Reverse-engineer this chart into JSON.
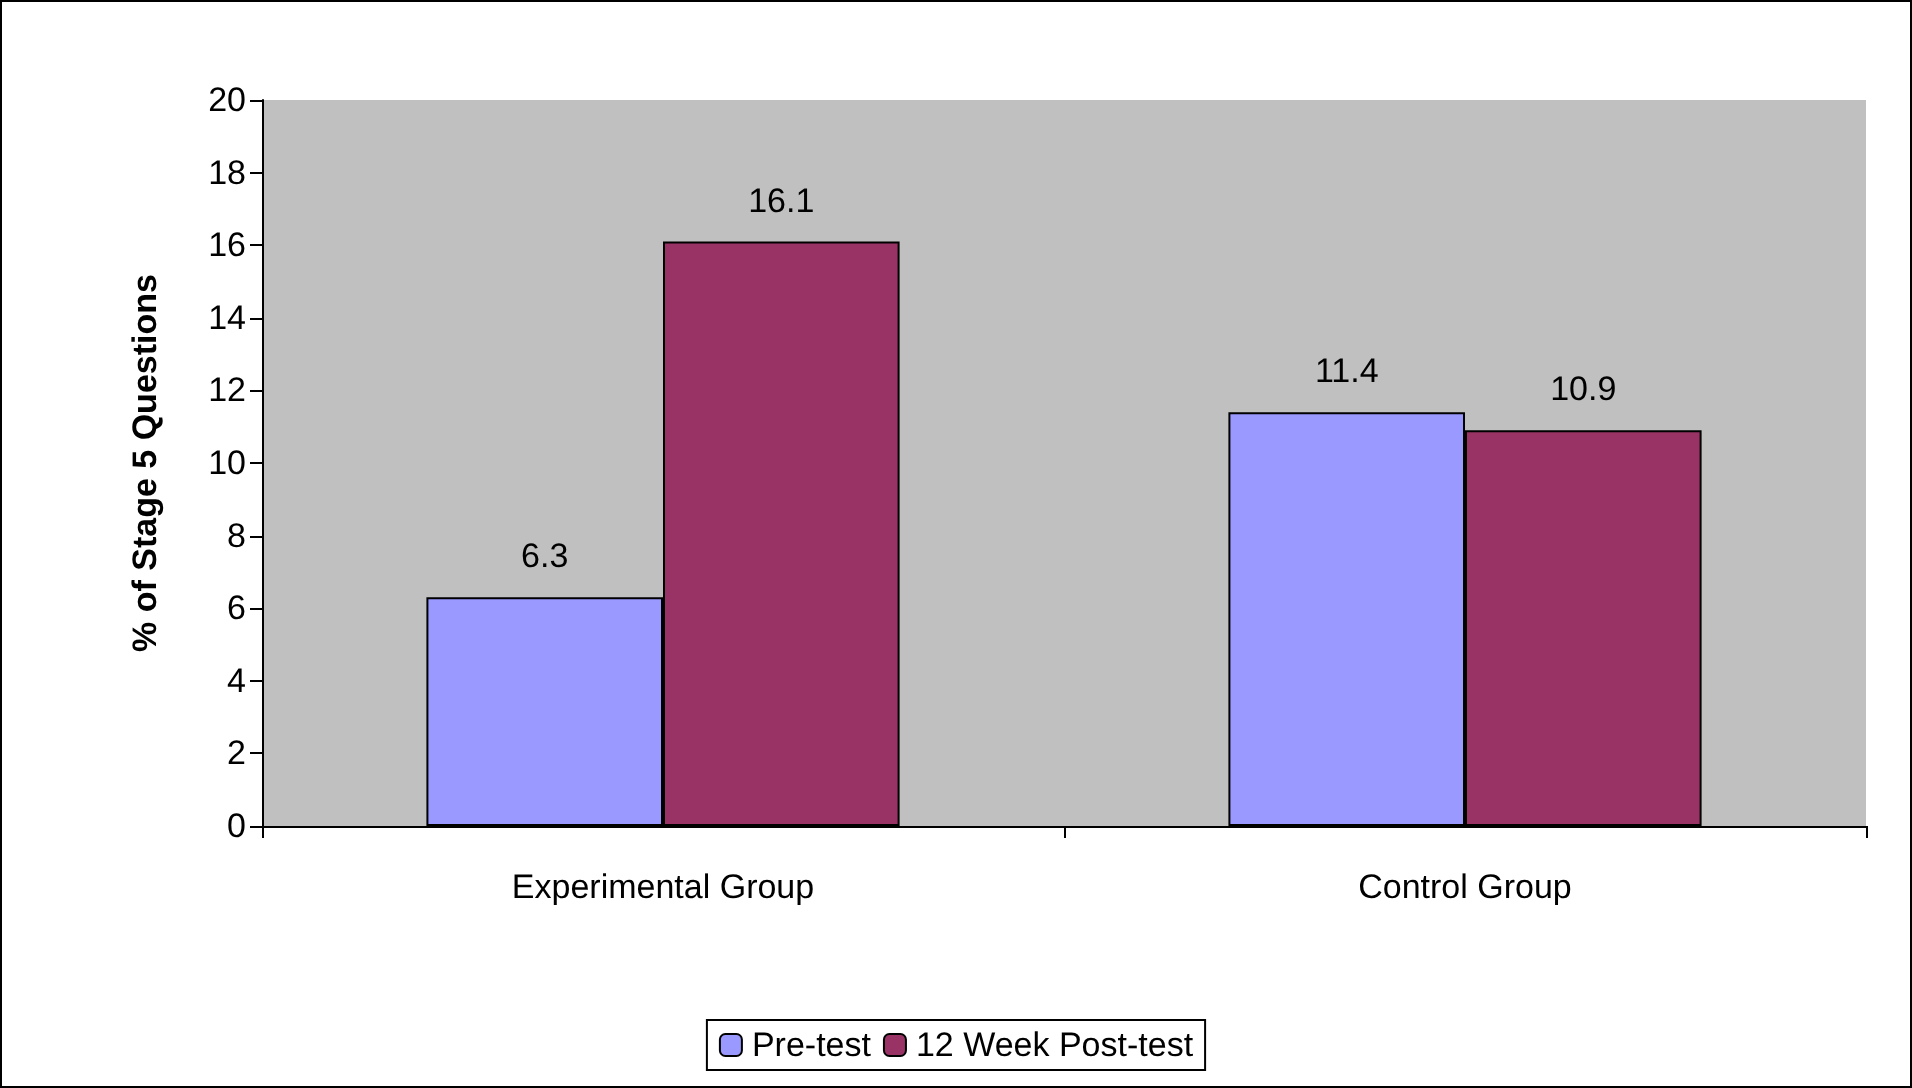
{
  "chart_data": {
    "type": "bar",
    "ylabel": "% of Stage 5 Questions",
    "categories": [
      "Experimental Group",
      "Control Group"
    ],
    "series": [
      {
        "name": "Pre-test",
        "color": "#9999ff",
        "values": [
          6.3,
          11.4
        ]
      },
      {
        "name": "12 Week Post-test",
        "color": "#993366",
        "values": [
          16.1,
          10.9
        ]
      }
    ],
    "ylim": [
      0,
      20
    ],
    "yticks": [
      0,
      2,
      4,
      6,
      8,
      10,
      12,
      14,
      16,
      18,
      20
    ],
    "grid": false,
    "legend": "bottom",
    "data_labels": true
  }
}
